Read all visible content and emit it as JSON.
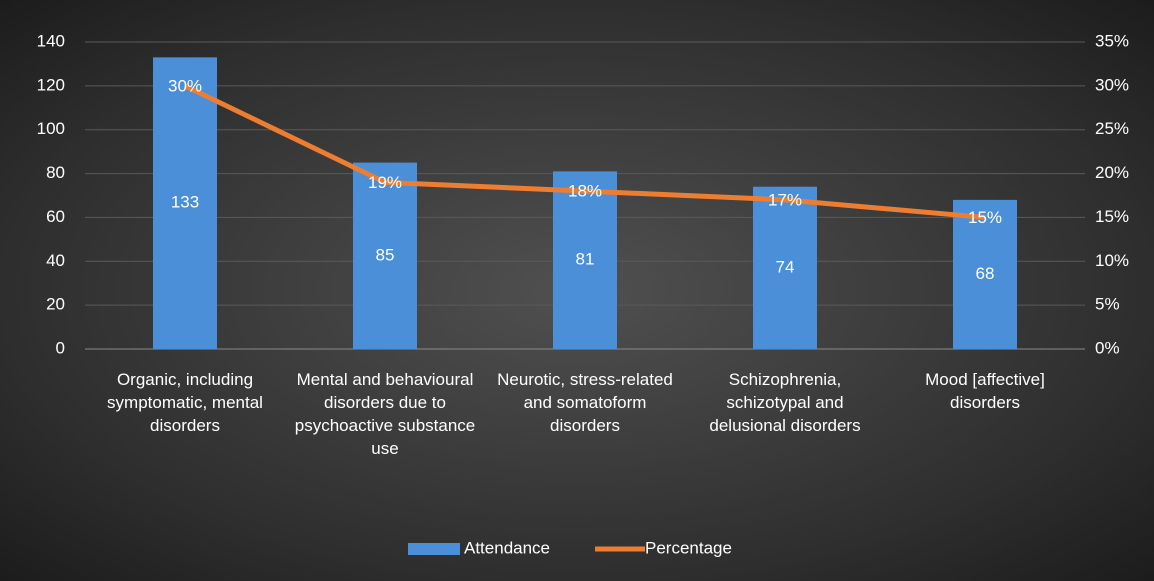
{
  "chart_data": {
    "type": "bar_line",
    "categories": [
      "Organic, including symptomatic, mental disorders",
      "Mental and behavioural disorders due to psychoactive substance use",
      "Neurotic, stress-related and somatoform disorders",
      "Schizophrenia, schizotypal and delusional disorders",
      "Mood [affective] disorders"
    ],
    "series": [
      {
        "name": "Attendance",
        "type": "bar",
        "color": "#4a8fd8",
        "values": [
          133,
          85,
          81,
          74,
          68
        ]
      },
      {
        "name": "Percentage",
        "type": "line",
        "axis": "y2",
        "color": "#ed7d31",
        "values": [
          30,
          19,
          18,
          17,
          15
        ],
        "value_labels": [
          "30%",
          "19%",
          "18%",
          "17%",
          "15%"
        ]
      }
    ],
    "ylim": [
      0,
      140
    ],
    "yticks": [
      0,
      20,
      40,
      60,
      80,
      100,
      120,
      140
    ],
    "y2lim": [
      0,
      35
    ],
    "y2ticks": [
      {
        "value": 0,
        "label": "0%"
      },
      {
        "value": 5,
        "label": "5%"
      },
      {
        "value": 10,
        "label": "10%"
      },
      {
        "value": 15,
        "label": "15%"
      },
      {
        "value": 20,
        "label": "20%"
      },
      {
        "value": 25,
        "label": "25%"
      },
      {
        "value": 30,
        "label": "30%"
      },
      {
        "value": 35,
        "label": "35%"
      }
    ],
    "grid": true,
    "legend": "bottom"
  }
}
